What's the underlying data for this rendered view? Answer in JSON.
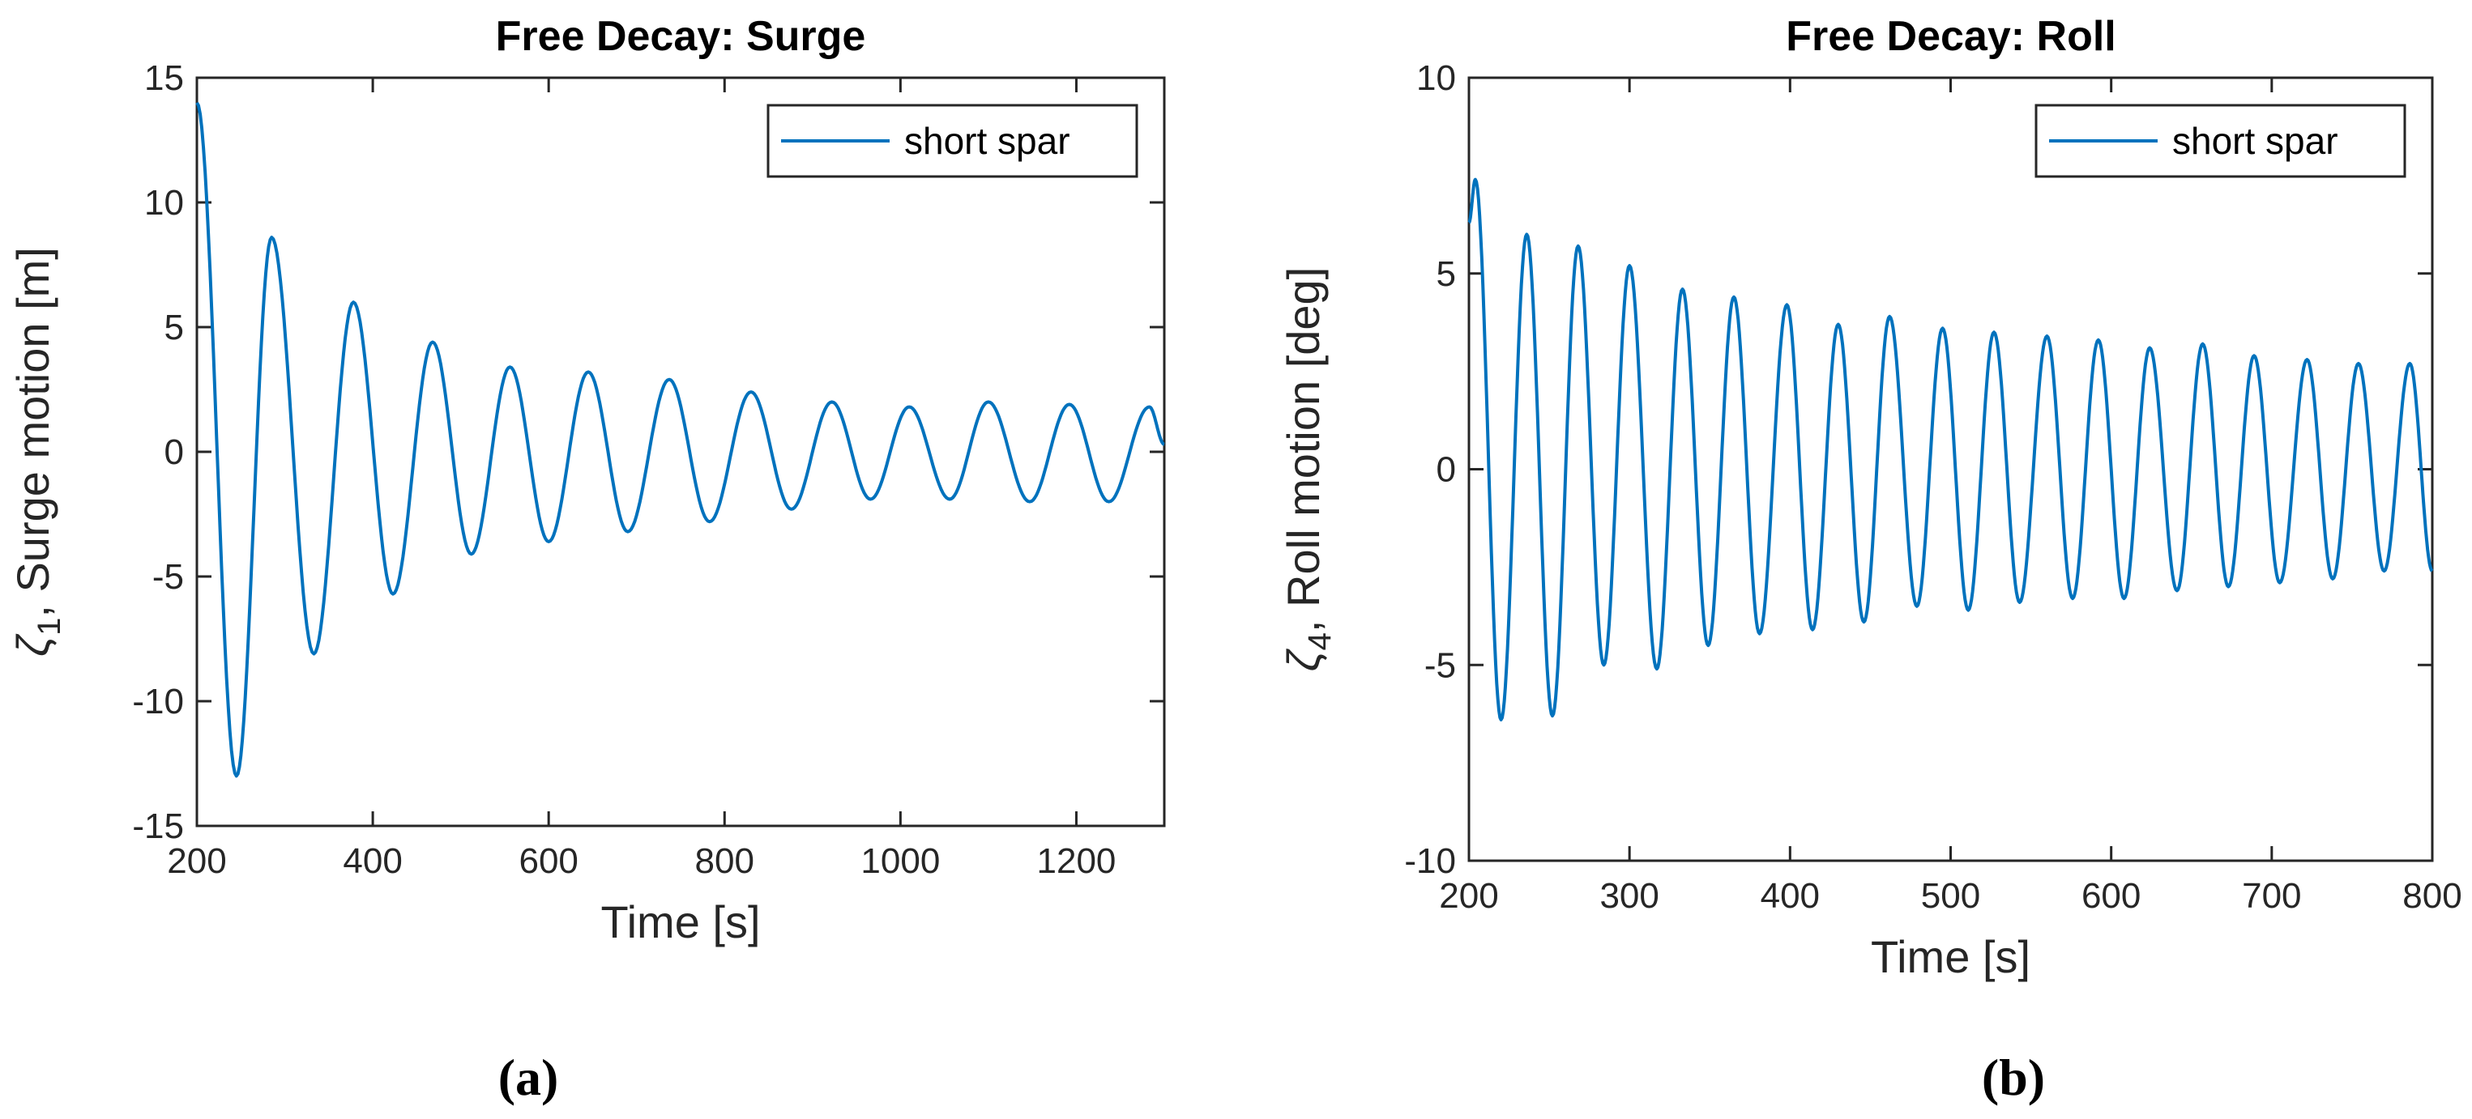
{
  "chart_data": [
    {
      "type": "line",
      "panel_label": "(a)",
      "title": "Free Decay: Surge",
      "xlabel": "Time [s]",
      "ylabel_symbol": "ζ",
      "ylabel_subscript": "1",
      "ylabel_text": ", Surge motion [m]",
      "xlim": [
        200,
        1300
      ],
      "ylim": [
        -15,
        15
      ],
      "xticks": [
        200,
        400,
        600,
        800,
        1000,
        1200
      ],
      "yticks": [
        -15,
        -10,
        -5,
        0,
        5,
        10,
        15
      ],
      "xtick_labels": [
        "200",
        "400",
        "600",
        "800",
        "1000",
        "1200"
      ],
      "ytick_labels": [
        "-15",
        "-10",
        "-5",
        "0",
        "5",
        "10",
        "15"
      ],
      "legend_location": "top-right",
      "series": [
        {
          "name": "short spar",
          "color": "#0072BD",
          "extrema": [
            [
              200,
              14
            ],
            [
              245,
              -13
            ],
            [
              285,
              8.6
            ],
            [
              333,
              -8.1
            ],
            [
              378,
              6.0
            ],
            [
              423,
              -5.7
            ],
            [
              468,
              4.4
            ],
            [
              512,
              -4.1
            ],
            [
              556,
              3.4
            ],
            [
              600,
              -3.6
            ],
            [
              645,
              3.2
            ],
            [
              690,
              -3.2
            ],
            [
              737,
              2.9
            ],
            [
              783,
              -2.8
            ],
            [
              830,
              2.4
            ],
            [
              876,
              -2.3
            ],
            [
              922,
              2.0
            ],
            [
              966,
              -1.9
            ],
            [
              1010,
              1.8
            ],
            [
              1056,
              -1.9
            ],
            [
              1100,
              2.0
            ],
            [
              1147,
              -2.0
            ],
            [
              1192,
              1.9
            ],
            [
              1237,
              -2.0
            ],
            [
              1283,
              1.8
            ],
            [
              1300,
              0.3
            ]
          ]
        }
      ]
    },
    {
      "type": "line",
      "panel_label": "(b)",
      "title": "Free Decay: Roll",
      "xlabel": "Time [s]",
      "ylabel_symbol": "ζ",
      "ylabel_subscript": "4",
      "ylabel_text": ", Roll motion [deg]",
      "xlim": [
        200,
        800
      ],
      "ylim": [
        -10,
        10
      ],
      "xticks": [
        200,
        300,
        400,
        500,
        600,
        700,
        800
      ],
      "yticks": [
        -10,
        -5,
        0,
        5,
        10
      ],
      "xtick_labels": [
        "200",
        "300",
        "400",
        "500",
        "600",
        "700",
        "800"
      ],
      "ytick_labels": [
        "-10",
        "-5",
        "0",
        "5",
        "10"
      ],
      "legend_location": "top-right",
      "series": [
        {
          "name": "short spar",
          "color": "#0072BD",
          "extrema": [
            [
              200,
              6.3
            ],
            [
              204,
              7.4
            ],
            [
              220,
              -6.4
            ],
            [
              236,
              6.0
            ],
            [
              252,
              -6.3
            ],
            [
              268,
              5.7
            ],
            [
              284,
              -5.0
            ],
            [
              300,
              5.2
            ],
            [
              317,
              -5.1
            ],
            [
              333,
              4.6
            ],
            [
              349,
              -4.5
            ],
            [
              365,
              4.4
            ],
            [
              381,
              -4.2
            ],
            [
              398,
              4.2
            ],
            [
              414,
              -4.1
            ],
            [
              430,
              3.7
            ],
            [
              446,
              -3.9
            ],
            [
              462,
              3.9
            ],
            [
              479,
              -3.5
            ],
            [
              495,
              3.6
            ],
            [
              511,
              -3.6
            ],
            [
              527,
              3.5
            ],
            [
              543,
              -3.4
            ],
            [
              560,
              3.4
            ],
            [
              576,
              -3.3
            ],
            [
              592,
              3.3
            ],
            [
              608,
              -3.3
            ],
            [
              624,
              3.1
            ],
            [
              641,
              -3.1
            ],
            [
              657,
              3.2
            ],
            [
              673,
              -3.0
            ],
            [
              689,
              2.9
            ],
            [
              705,
              -2.9
            ],
            [
              722,
              2.8
            ],
            [
              738,
              -2.8
            ],
            [
              754,
              2.7
            ],
            [
              770,
              -2.6
            ],
            [
              786,
              2.7
            ],
            [
              800,
              -2.6
            ]
          ]
        }
      ]
    }
  ]
}
